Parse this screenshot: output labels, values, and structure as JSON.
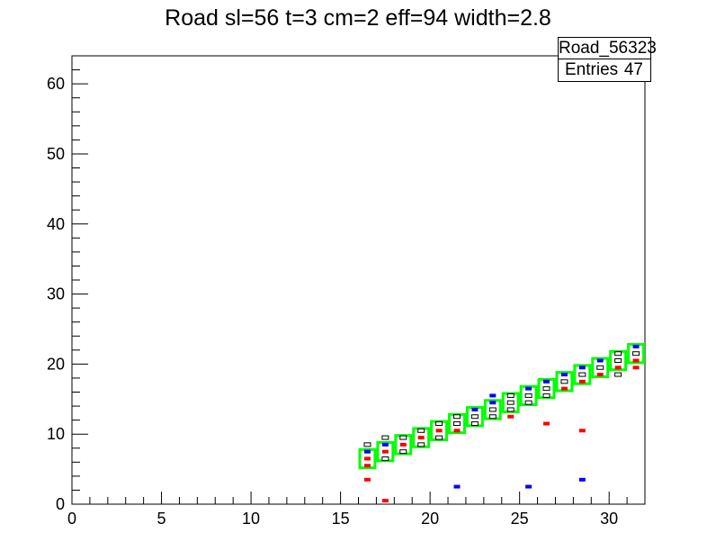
{
  "chart_data": {
    "type": "scatter",
    "title": "Road sl=56 t=3 cm=2 eff=94 width=2.8",
    "xlabel": "",
    "ylabel": "",
    "xlim": [
      0,
      32
    ],
    "ylim": [
      0,
      64
    ],
    "x_ticks": [
      "0",
      "5",
      "10",
      "15",
      "20",
      "25",
      "30"
    ],
    "y_ticks": [
      "0",
      "10",
      "20",
      "30",
      "40",
      "50",
      "60"
    ],
    "legend": {
      "name": "Road_56323",
      "entries_label": "Entries",
      "entries_value": "47"
    },
    "colors": {
      "road": "#00ff00",
      "blue": "#0000ff",
      "red": "#ff0000",
      "black": "#000000"
    },
    "road_boxes": [
      [
        16,
        5
      ],
      [
        17,
        6
      ],
      [
        18,
        7
      ],
      [
        19,
        8
      ],
      [
        20,
        9
      ],
      [
        21,
        10
      ],
      [
        22,
        11
      ],
      [
        23,
        12
      ],
      [
        24,
        13
      ],
      [
        25,
        14
      ],
      [
        26,
        15
      ],
      [
        27,
        16
      ],
      [
        28,
        17
      ],
      [
        29,
        18
      ],
      [
        30,
        19
      ],
      [
        31,
        20
      ]
    ],
    "series": [
      {
        "color": "blue",
        "points": [
          [
            16.5,
            7.5
          ],
          [
            17.5,
            8.5
          ],
          [
            18.5,
            9.5
          ],
          [
            19.5,
            10.5
          ],
          [
            20.5,
            11.5
          ],
          [
            21.5,
            12.5
          ],
          [
            22.5,
            13.5
          ],
          [
            23.5,
            14.5
          ],
          [
            24.5,
            15.5
          ],
          [
            25.5,
            16.5
          ],
          [
            26.5,
            17.5
          ],
          [
            27.5,
            18.5
          ],
          [
            28.5,
            18.5
          ],
          [
            29.5,
            20.5
          ],
          [
            30.5,
            20.5
          ],
          [
            31.5,
            21.5
          ],
          [
            31.5,
            22.5
          ],
          [
            23.5,
            15.5
          ],
          [
            28.5,
            19.5
          ],
          [
            21.5,
            2.5
          ],
          [
            25.5,
            2.5
          ],
          [
            28.5,
            3.5
          ]
        ]
      },
      {
        "color": "red",
        "points": [
          [
            16.5,
            6.5
          ],
          [
            16.5,
            5.5
          ],
          [
            17.5,
            7.5
          ],
          [
            18.5,
            8.5
          ],
          [
            19.5,
            9.5
          ],
          [
            20.5,
            10.5
          ],
          [
            21.5,
            10.5
          ],
          [
            22.5,
            12.5
          ],
          [
            23.5,
            13.5
          ],
          [
            24.5,
            14.5
          ],
          [
            25.5,
            14.5
          ],
          [
            26.5,
            15.5
          ],
          [
            27.5,
            16.5
          ],
          [
            28.5,
            17.5
          ],
          [
            29.5,
            18.5
          ],
          [
            30.5,
            19.5
          ],
          [
            31.5,
            20.5
          ],
          [
            31.5,
            19.5
          ],
          [
            16.5,
            3.5
          ],
          [
            17.5,
            0.5
          ],
          [
            24.5,
            12.5
          ],
          [
            26.5,
            11.5
          ],
          [
            28.5,
            10.5
          ]
        ]
      },
      {
        "color": "black",
        "points": [
          [
            16.5,
            8.5
          ],
          [
            17.5,
            9.5
          ],
          [
            17.5,
            6.5
          ],
          [
            18.5,
            7.5
          ],
          [
            18.5,
            9.5
          ],
          [
            19.5,
            8.5
          ],
          [
            19.5,
            10.5
          ],
          [
            20.5,
            9.5
          ],
          [
            20.5,
            11.5
          ],
          [
            21.5,
            11.5
          ],
          [
            21.5,
            12.5
          ],
          [
            22.5,
            11.5
          ],
          [
            22.5,
            12.5
          ],
          [
            23.5,
            12.5
          ],
          [
            23.5,
            13.5
          ],
          [
            24.5,
            13.5
          ],
          [
            24.5,
            14.5
          ],
          [
            24.5,
            15.5
          ],
          [
            25.5,
            14.5
          ],
          [
            25.5,
            15.5
          ],
          [
            26.5,
            15.5
          ],
          [
            26.5,
            16.5
          ],
          [
            27.5,
            17.5
          ],
          [
            28.5,
            18.5
          ],
          [
            29.5,
            19.5
          ],
          [
            30.5,
            18.5
          ],
          [
            30.5,
            20.5
          ],
          [
            30.5,
            21.5
          ],
          [
            31.5,
            21.5
          ]
        ]
      }
    ]
  }
}
